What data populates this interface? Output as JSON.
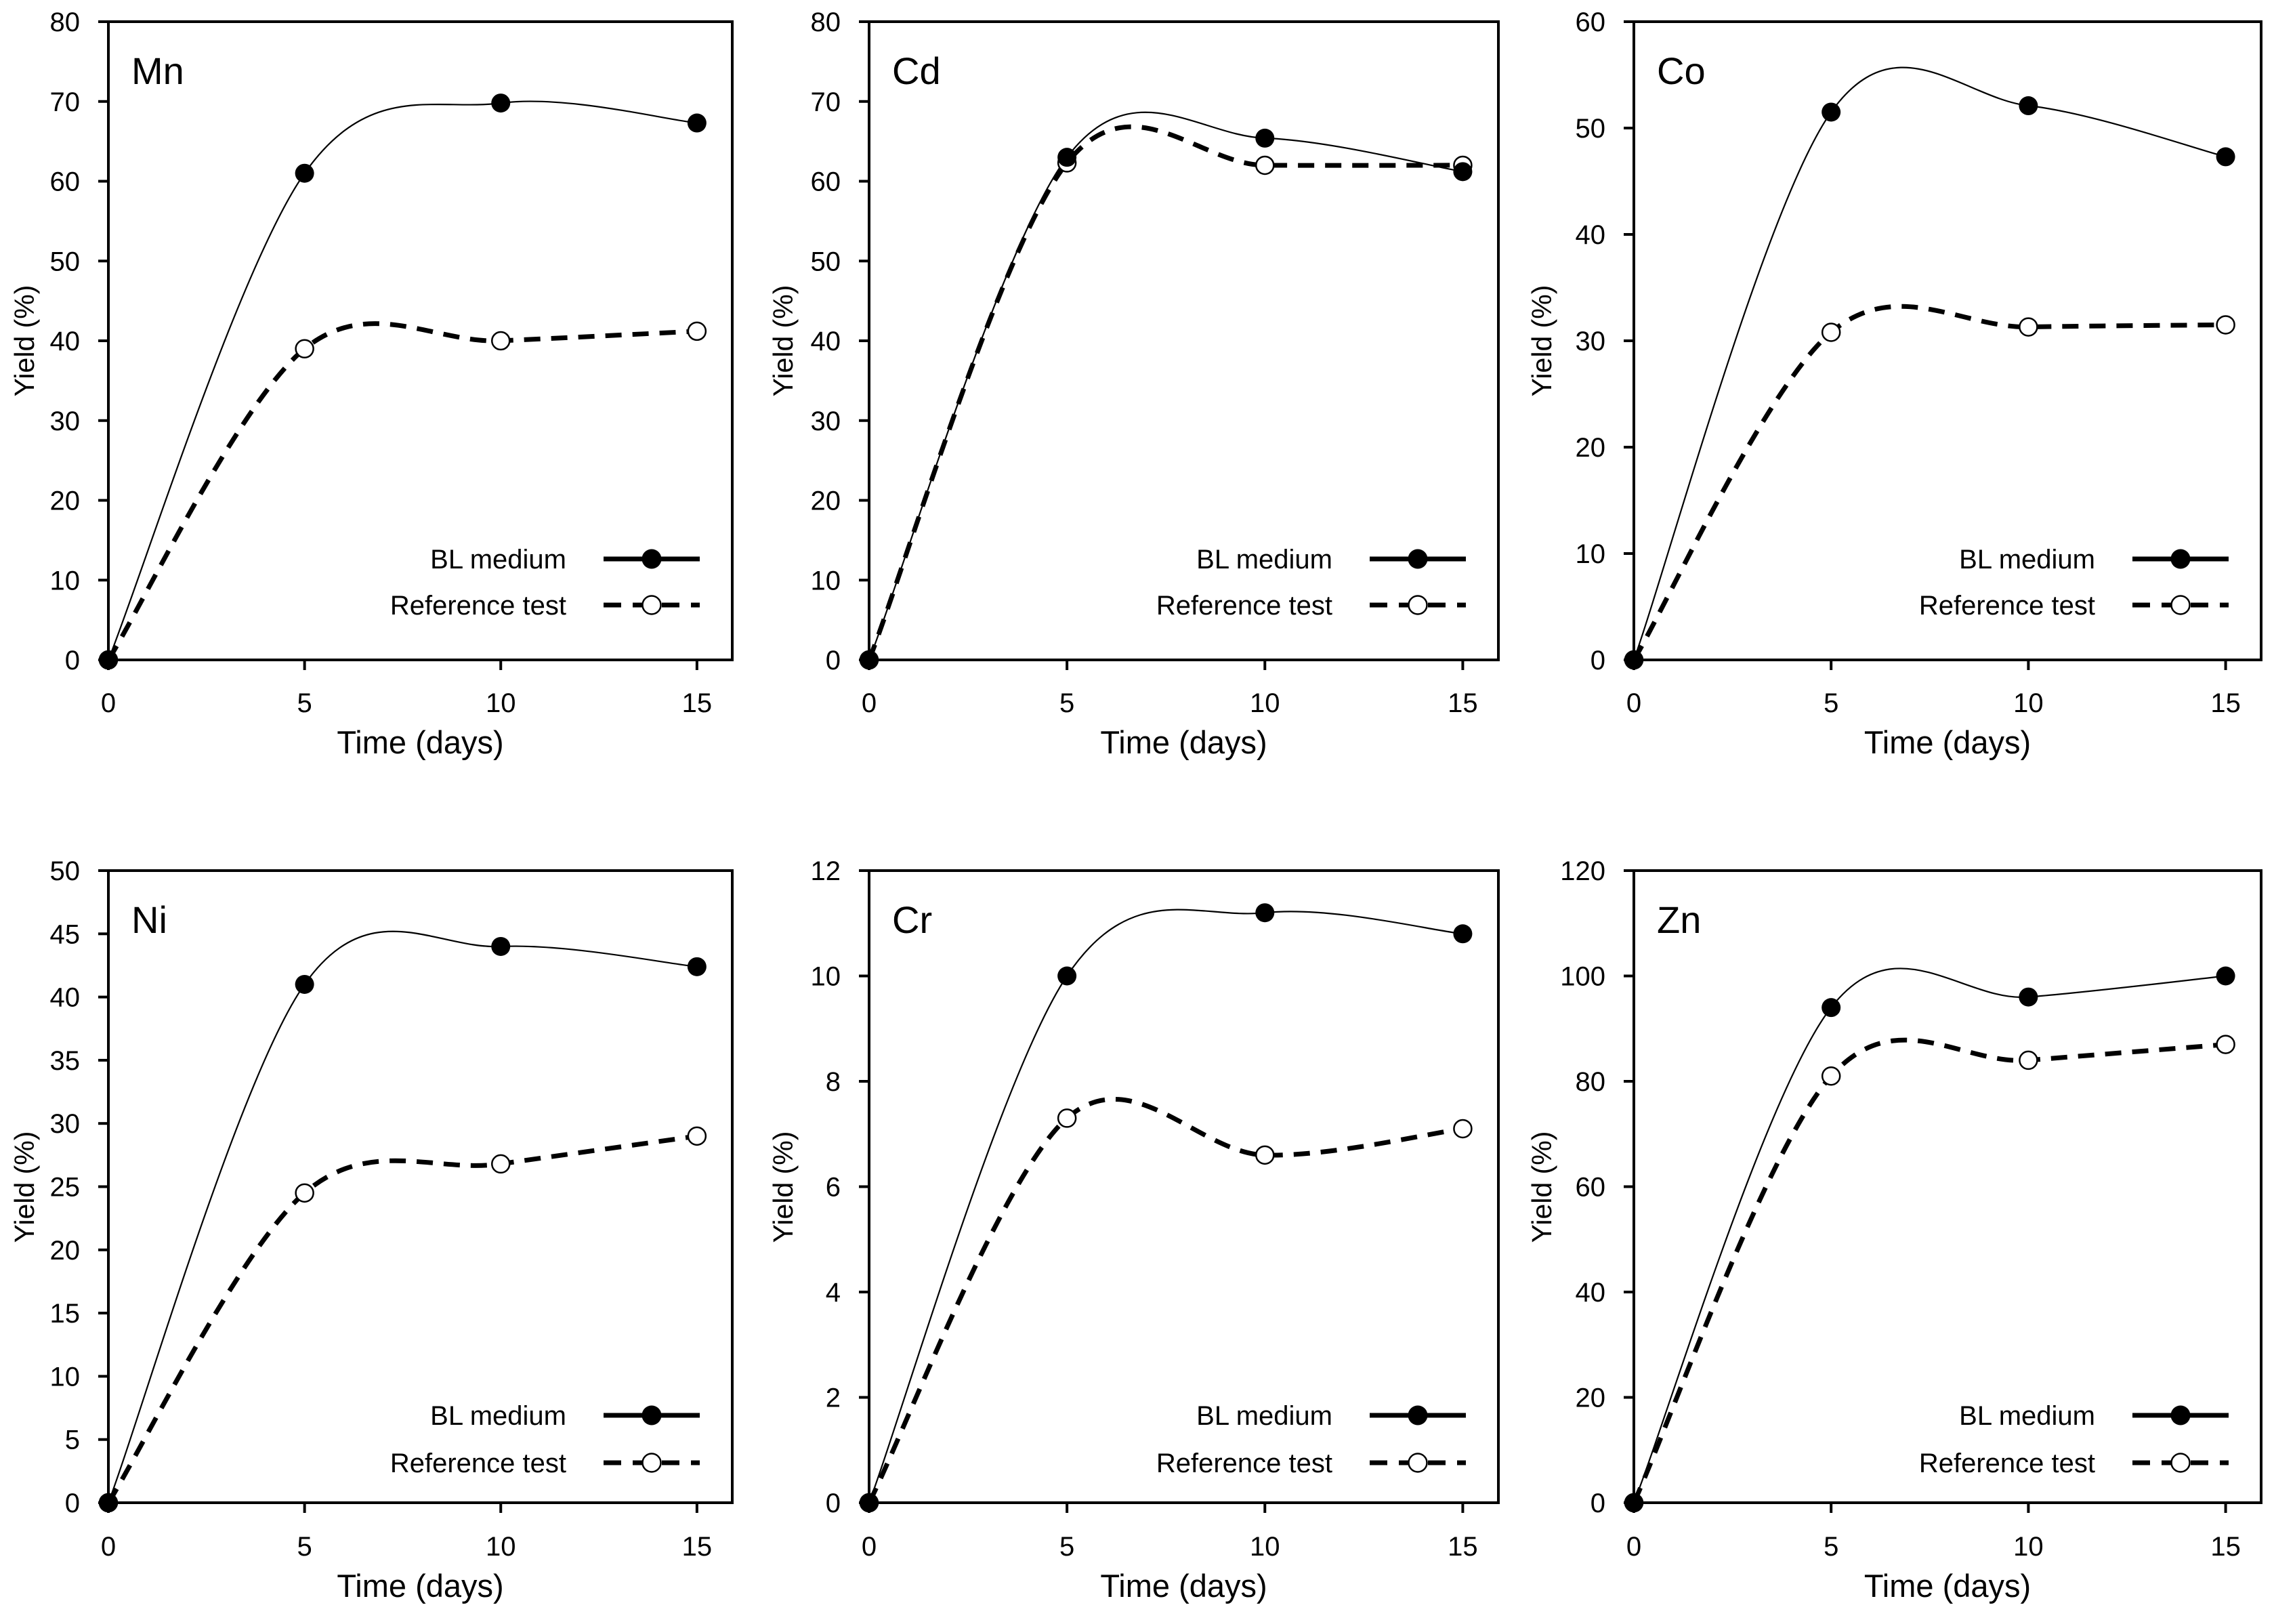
{
  "figure": {
    "background": "#ffffff",
    "foreground": "#000000"
  },
  "chart_data": [
    {
      "type": "line",
      "title": "Mn",
      "xlabel": "Time (days)",
      "ylabel": "Yield (%)",
      "x": [
        0,
        5,
        10,
        15
      ],
      "xticks": [
        0,
        5,
        10,
        15
      ],
      "xlim": [
        0,
        15.9
      ],
      "ylim": [
        0,
        80
      ],
      "ytick_step": 10,
      "grid": false,
      "legend_position": "lower-right",
      "series": [
        {
          "name": "BL medium",
          "line_style": "solid",
          "marker": "filled-circle",
          "color": "#000000",
          "values": [
            0,
            61,
            69.8,
            67.3
          ]
        },
        {
          "name": "Reference test",
          "line_style": "dashed",
          "marker": "open-circle",
          "color": "#000000",
          "values": [
            0,
            39,
            40,
            41.2
          ]
        }
      ]
    },
    {
      "type": "line",
      "title": "Cd",
      "xlabel": "Time (days)",
      "ylabel": "Yield (%)",
      "x": [
        0,
        5,
        10,
        15
      ],
      "xticks": [
        0,
        5,
        10,
        15
      ],
      "xlim": [
        0,
        15.9
      ],
      "ylim": [
        0,
        80
      ],
      "ytick_step": 10,
      "grid": false,
      "legend_position": "lower-right",
      "series": [
        {
          "name": "BL medium",
          "line_style": "solid",
          "marker": "filled-circle",
          "color": "#000000",
          "values": [
            0,
            63,
            65.4,
            61.2
          ]
        },
        {
          "name": "Reference test",
          "line_style": "dashed",
          "marker": "open-circle",
          "color": "#000000",
          "values": [
            0,
            62.3,
            62,
            62
          ]
        }
      ]
    },
    {
      "type": "line",
      "title": "Co",
      "xlabel": "Time (days)",
      "ylabel": "Yield (%)",
      "x": [
        0,
        5,
        10,
        15
      ],
      "xticks": [
        0,
        5,
        10,
        15
      ],
      "xlim": [
        0,
        15.9
      ],
      "ylim": [
        0,
        60
      ],
      "ytick_step": 10,
      "grid": false,
      "legend_position": "lower-right",
      "series": [
        {
          "name": "BL medium",
          "line_style": "solid",
          "marker": "filled-circle",
          "color": "#000000",
          "values": [
            0,
            51.5,
            52.1,
            47.3
          ]
        },
        {
          "name": "Reference test",
          "line_style": "dashed",
          "marker": "open-circle",
          "color": "#000000",
          "values": [
            0,
            30.8,
            31.3,
            31.5
          ]
        }
      ]
    },
    {
      "type": "line",
      "title": "Ni",
      "xlabel": "Time (days)",
      "ylabel": "Yield (%)",
      "x": [
        0,
        5,
        10,
        15
      ],
      "xticks": [
        0,
        5,
        10,
        15
      ],
      "xlim": [
        0,
        15.9
      ],
      "ylim": [
        0,
        50
      ],
      "ytick_step": 5,
      "grid": false,
      "legend_position": "lower-right",
      "series": [
        {
          "name": "BL medium",
          "line_style": "solid",
          "marker": "filled-circle",
          "color": "#000000",
          "values": [
            0,
            41,
            44,
            42.4
          ]
        },
        {
          "name": "Reference test",
          "line_style": "dashed",
          "marker": "open-circle",
          "color": "#000000",
          "values": [
            0,
            24.5,
            26.8,
            29
          ]
        }
      ]
    },
    {
      "type": "line",
      "title": "Cr",
      "xlabel": "Time (days)",
      "ylabel": "Yield (%)",
      "x": [
        0,
        5,
        10,
        15
      ],
      "xticks": [
        0,
        5,
        10,
        15
      ],
      "xlim": [
        0,
        15.9
      ],
      "ylim": [
        0,
        12
      ],
      "ytick_step": 2,
      "grid": false,
      "legend_position": "lower-right",
      "series": [
        {
          "name": "BL medium",
          "line_style": "solid",
          "marker": "filled-circle",
          "color": "#000000",
          "values": [
            0,
            10,
            11.2,
            10.8
          ]
        },
        {
          "name": "Reference test",
          "line_style": "dashed",
          "marker": "open-circle",
          "color": "#000000",
          "values": [
            0,
            7.3,
            6.6,
            7.1
          ]
        }
      ]
    },
    {
      "type": "line",
      "title": "Zn",
      "xlabel": "Time (days)",
      "ylabel": "Yield (%)",
      "x": [
        0,
        5,
        10,
        15
      ],
      "xticks": [
        0,
        5,
        10,
        15
      ],
      "xlim": [
        0,
        15.9
      ],
      "ylim": [
        0,
        120
      ],
      "ytick_step": 20,
      "grid": false,
      "legend_position": "lower-right",
      "series": [
        {
          "name": "BL medium",
          "line_style": "solid",
          "marker": "filled-circle",
          "color": "#000000",
          "values": [
            0,
            94,
            96,
            100
          ]
        },
        {
          "name": "Reference test",
          "line_style": "dashed",
          "marker": "open-circle",
          "color": "#000000",
          "values": [
            0,
            81,
            84,
            87
          ]
        }
      ]
    }
  ]
}
